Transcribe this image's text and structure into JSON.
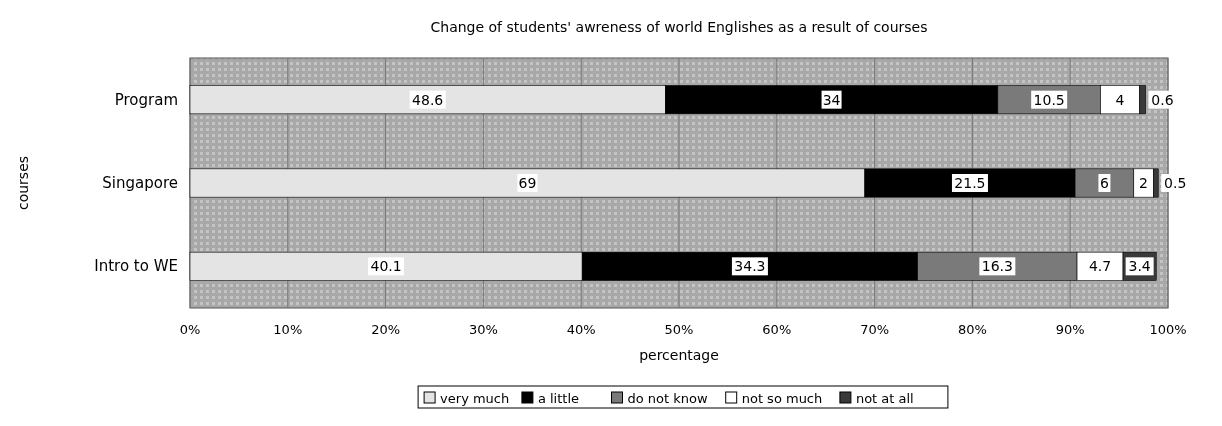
{
  "chart_data": {
    "type": "bar",
    "orientation": "horizontal",
    "stacked": true,
    "title": "Change of students' awreness of world Englishes as a result of courses",
    "xlabel": "percentage",
    "ylabel": "courses",
    "categories": [
      "Program",
      "Singapore",
      "Intro to WE"
    ],
    "series": [
      {
        "name": "very much",
        "color": "#e4e4e4",
        "values": [
          48.6,
          69,
          40.1
        ]
      },
      {
        "name": "a little",
        "color": "#000000",
        "values": [
          34,
          21.5,
          34.3
        ]
      },
      {
        "name": "do not know",
        "color": "#7a7a7a",
        "values": [
          10.5,
          6,
          16.3
        ]
      },
      {
        "name": "not so much",
        "color": "#ffffff",
        "values": [
          4,
          2,
          4.7
        ]
      },
      {
        "name": "not at all",
        "color": "#3a3a3a",
        "values": [
          0.6,
          0.5,
          3.4
        ]
      }
    ],
    "xlim": [
      0,
      100
    ],
    "xticks": [
      {
        "value": 0,
        "label": "0%"
      },
      {
        "value": 10,
        "label": "10%"
      },
      {
        "value": 20,
        "label": "20%"
      },
      {
        "value": 30,
        "label": "30%"
      },
      {
        "value": 40,
        "label": "40%"
      },
      {
        "value": 50,
        "label": "50%"
      },
      {
        "value": 60,
        "label": "60%"
      },
      {
        "value": 70,
        "label": "70%"
      },
      {
        "value": 80,
        "label": "80%"
      },
      {
        "value": 90,
        "label": "90%"
      },
      {
        "value": 100,
        "label": "100%"
      }
    ],
    "grid": "x",
    "legend": "bottom",
    "data_labels": true
  }
}
